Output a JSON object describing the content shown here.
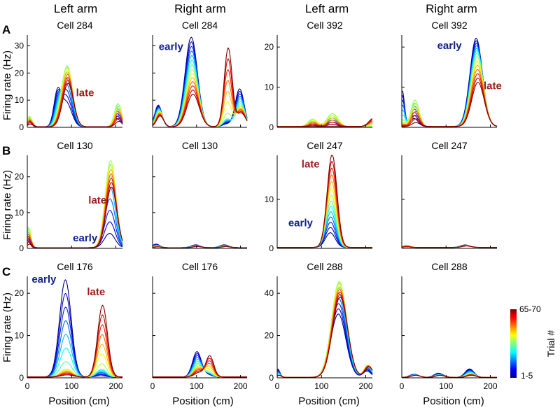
{
  "columns": [
    {
      "label": "Left arm",
      "color": "#1e9bd7"
    },
    {
      "label": "Right arm",
      "color": "#d63aa8"
    },
    {
      "label": "Left arm",
      "color": "#1e9bd7"
    },
    {
      "label": "Right arm",
      "color": "#d63aa8"
    }
  ],
  "rows": [
    {
      "letter": "A"
    },
    {
      "letter": "B"
    },
    {
      "letter": "C"
    }
  ],
  "ylabel": "Firing rate (Hz)",
  "xlabel": "Position (cm)",
  "colorbar": {
    "title": "Trial #",
    "top_label": "65-70",
    "bottom_label": "1-5",
    "colormap": "jet"
  },
  "chart_data": [
    {
      "type": "line",
      "title": "Cell 284",
      "row": "A",
      "col": 1,
      "xlim": [
        0,
        215
      ],
      "ylim": [
        0,
        34
      ],
      "yticks": [
        0,
        10,
        20,
        30
      ],
      "xticks": [
        0,
        100,
        200
      ],
      "show_xticklabels": false,
      "annotations": [
        {
          "text": "late",
          "x": 110,
          "y": 11.5,
          "color": "#9b1b1b"
        }
      ],
      "peaks": [
        {
          "center": 90,
          "width": 12,
          "early": 9,
          "peak_trial": 23,
          "late": 16
        },
        {
          "center": 70,
          "width": 8,
          "early": 12,
          "peak_trial": 2,
          "late": 0
        },
        {
          "center": 205,
          "width": 8,
          "early": 3,
          "peak_trial": 9,
          "late": 2
        },
        {
          "center": 5,
          "width": 6,
          "early": 2,
          "peak_trial": 4,
          "late": 1
        }
      ]
    },
    {
      "type": "line",
      "title": "Cell 284",
      "row": "A",
      "col": 2,
      "xlim": [
        0,
        215
      ],
      "ylim": [
        0,
        34
      ],
      "yticks": [
        0,
        10,
        20,
        30
      ],
      "xticks": [
        0,
        100,
        200
      ],
      "show_xticklabels": false,
      "annotations": [
        {
          "text": "early",
          "x": 14,
          "y": 28.5,
          "color": "#10218b"
        }
      ],
      "peaks": [
        {
          "center": 90,
          "width": 14,
          "early": 33,
          "peak_trial": 22,
          "late": 12
        },
        {
          "center": 170,
          "width": 9,
          "early": 1,
          "peak_trial": 3,
          "late": 29
        },
        {
          "center": 200,
          "width": 10,
          "early": 14,
          "peak_trial": 8,
          "late": 5
        },
        {
          "center": 15,
          "width": 8,
          "early": 8,
          "peak_trial": 6,
          "late": 4
        }
      ]
    },
    {
      "type": "line",
      "title": "Cell 392",
      "row": "A",
      "col": 3,
      "xlim": [
        0,
        215
      ],
      "ylim": [
        0,
        23
      ],
      "yticks": [
        0,
        10,
        20
      ],
      "xticks": [
        0,
        100,
        200
      ],
      "show_xticklabels": false,
      "annotations": [],
      "peaks": [
        {
          "center": 125,
          "width": 12,
          "early": 0,
          "peak_trial": 3.5,
          "late": 0
        },
        {
          "center": 80,
          "width": 10,
          "early": 0,
          "peak_trial": 2,
          "late": 0
        },
        {
          "center": 215,
          "width": 10,
          "early": 0,
          "peak_trial": 0,
          "late": 2
        }
      ]
    },
    {
      "type": "line",
      "title": "Cell 392",
      "row": "A",
      "col": 4,
      "xlim": [
        0,
        215
      ],
      "ylim": [
        0,
        23
      ],
      "yticks": [
        0,
        10,
        20
      ],
      "xticks": [
        0,
        100,
        200
      ],
      "show_xticklabels": false,
      "annotations": [
        {
          "text": "early",
          "x": 80,
          "y": 19.5,
          "color": "#10218b"
        },
        {
          "text": "late",
          "x": 185,
          "y": 9.5,
          "color": "#9b1b1b"
        }
      ],
      "peaks": [
        {
          "center": 170,
          "width": 14,
          "early": 22,
          "peak_trial": 18,
          "late": 11
        },
        {
          "center": 30,
          "width": 9,
          "early": 2,
          "peak_trial": 7,
          "late": 1
        },
        {
          "center": 3,
          "width": 5,
          "early": 9,
          "peak_trial": 1,
          "late": 0
        }
      ]
    },
    {
      "type": "line",
      "title": "Cell 130",
      "row": "B",
      "col": 1,
      "xlim": [
        0,
        215
      ],
      "ylim": [
        0,
        26
      ],
      "yticks": [
        0,
        10,
        20
      ],
      "xticks": [
        0,
        100,
        200
      ],
      "show_xticklabels": false,
      "annotations": [
        {
          "text": "late",
          "x": 138,
          "y": 12.5,
          "color": "#9b1b1b"
        },
        {
          "text": "early",
          "x": 103,
          "y": 2,
          "color": "#10218b"
        }
      ],
      "peaks": [
        {
          "center": 188,
          "width": 12,
          "early": 4,
          "peak_trial": 25,
          "late": 17
        },
        {
          "center": 3,
          "width": 5,
          "early": 2,
          "peak_trial": 6,
          "late": 1
        }
      ]
    },
    {
      "type": "line",
      "title": "Cell 130",
      "row": "B",
      "col": 2,
      "xlim": [
        0,
        215
      ],
      "ylim": [
        0,
        26
      ],
      "yticks": [
        0,
        10,
        20
      ],
      "xticks": [
        0,
        100,
        200
      ],
      "show_xticklabels": false,
      "annotations": [],
      "peaks": [
        {
          "center": 100,
          "width": 10,
          "early": 0.8,
          "peak_trial": 0.4,
          "late": 0.3
        },
        {
          "center": 165,
          "width": 10,
          "early": 0.8,
          "peak_trial": 0.4,
          "late": 0.3
        },
        {
          "center": 10,
          "width": 8,
          "early": 1,
          "peak_trial": 0.4,
          "late": 0.2
        }
      ]
    },
    {
      "type": "line",
      "title": "Cell 247",
      "row": "B",
      "col": 3,
      "xlim": [
        0,
        215
      ],
      "ylim": [
        0,
        19
      ],
      "yticks": [
        0,
        10
      ],
      "xticks": [
        0,
        100,
        200
      ],
      "show_xticklabels": false,
      "annotations": [
        {
          "text": "late",
          "x": 55,
          "y": 16.5,
          "color": "#9b1b1b"
        },
        {
          "text": "early",
          "x": 25,
          "y": 4.5,
          "color": "#10218b"
        }
      ],
      "peaks": [
        {
          "center": 122,
          "width": 11,
          "early": 3,
          "peak_trial": 10,
          "late": 19
        }
      ]
    },
    {
      "type": "line",
      "title": "Cell 247",
      "row": "B",
      "col": 4,
      "xlim": [
        0,
        215
      ],
      "ylim": [
        0,
        19
      ],
      "yticks": [
        0,
        10
      ],
      "xticks": [
        0,
        100,
        200
      ],
      "show_xticklabels": false,
      "annotations": [],
      "peaks": [
        {
          "center": 145,
          "width": 10,
          "early": 0.5,
          "peak_trial": 0.3,
          "late": 0.3
        },
        {
          "center": 10,
          "width": 8,
          "early": 0.2,
          "peak_trial": 0.5,
          "late": 0.1
        }
      ]
    },
    {
      "type": "line",
      "title": "Cell 176",
      "row": "C",
      "col": 1,
      "xlim": [
        0,
        215
      ],
      "ylim": [
        0,
        24
      ],
      "yticks": [
        0,
        10,
        20
      ],
      "xticks": [
        0,
        100,
        200
      ],
      "xticklabels": [
        "0",
        "100",
        "200"
      ],
      "annotations": [
        {
          "text": "early",
          "x": 10,
          "y": 22.5,
          "color": "#10218b"
        },
        {
          "text": "late",
          "x": 135,
          "y": 19.5,
          "color": "#9b1b1b"
        }
      ],
      "peaks": [
        {
          "center": 88,
          "width": 13,
          "early": 23,
          "peak_trial": 2,
          "late": 0.5
        },
        {
          "center": 168,
          "width": 11,
          "early": 0.3,
          "peak_trial": 2,
          "late": 17
        }
      ]
    },
    {
      "type": "line",
      "title": "Cell 176",
      "row": "C",
      "col": 2,
      "xlim": [
        0,
        215
      ],
      "ylim": [
        0,
        24
      ],
      "yticks": [
        0,
        10,
        20
      ],
      "xticks": [
        0,
        100,
        200
      ],
      "xticklabels": [
        "0",
        "100",
        "200"
      ],
      "annotations": [],
      "peaks": [
        {
          "center": 103,
          "width": 10,
          "early": 6,
          "peak_trial": 3,
          "late": 1
        },
        {
          "center": 128,
          "width": 9,
          "early": 0.5,
          "peak_trial": 1,
          "late": 5
        }
      ]
    },
    {
      "type": "line",
      "title": "Cell 288",
      "row": "C",
      "col": 3,
      "xlim": [
        0,
        215
      ],
      "ylim": [
        0,
        48
      ],
      "yticks": [
        0,
        20,
        40
      ],
      "xticks": [
        0,
        100,
        200
      ],
      "xticklabels": [
        "0",
        "100",
        "200"
      ],
      "annotations": [],
      "peaks": [
        {
          "center": 140,
          "width": 17,
          "early": 30,
          "peak_trial": 46,
          "late": 38
        },
        {
          "center": 205,
          "width": 9,
          "early": 3,
          "peak_trial": 6,
          "late": 5
        },
        {
          "center": 3,
          "width": 5,
          "early": 4,
          "peak_trial": 1,
          "late": 1
        }
      ]
    },
    {
      "type": "line",
      "title": "Cell 288",
      "row": "C",
      "col": 4,
      "xlim": [
        0,
        215
      ],
      "ylim": [
        0,
        48
      ],
      "yticks": [
        0,
        20,
        40
      ],
      "xticks": [
        0,
        100,
        200
      ],
      "xticklabels": [
        "0",
        "100",
        "200"
      ],
      "annotations": [],
      "peaks": [
        {
          "center": 155,
          "width": 10,
          "early": 4,
          "peak_trial": 2,
          "late": 1
        },
        {
          "center": 85,
          "width": 10,
          "early": 2,
          "peak_trial": 1,
          "late": 1
        },
        {
          "center": 30,
          "width": 10,
          "early": 1.5,
          "peak_trial": 1,
          "late": 1
        }
      ]
    }
  ]
}
